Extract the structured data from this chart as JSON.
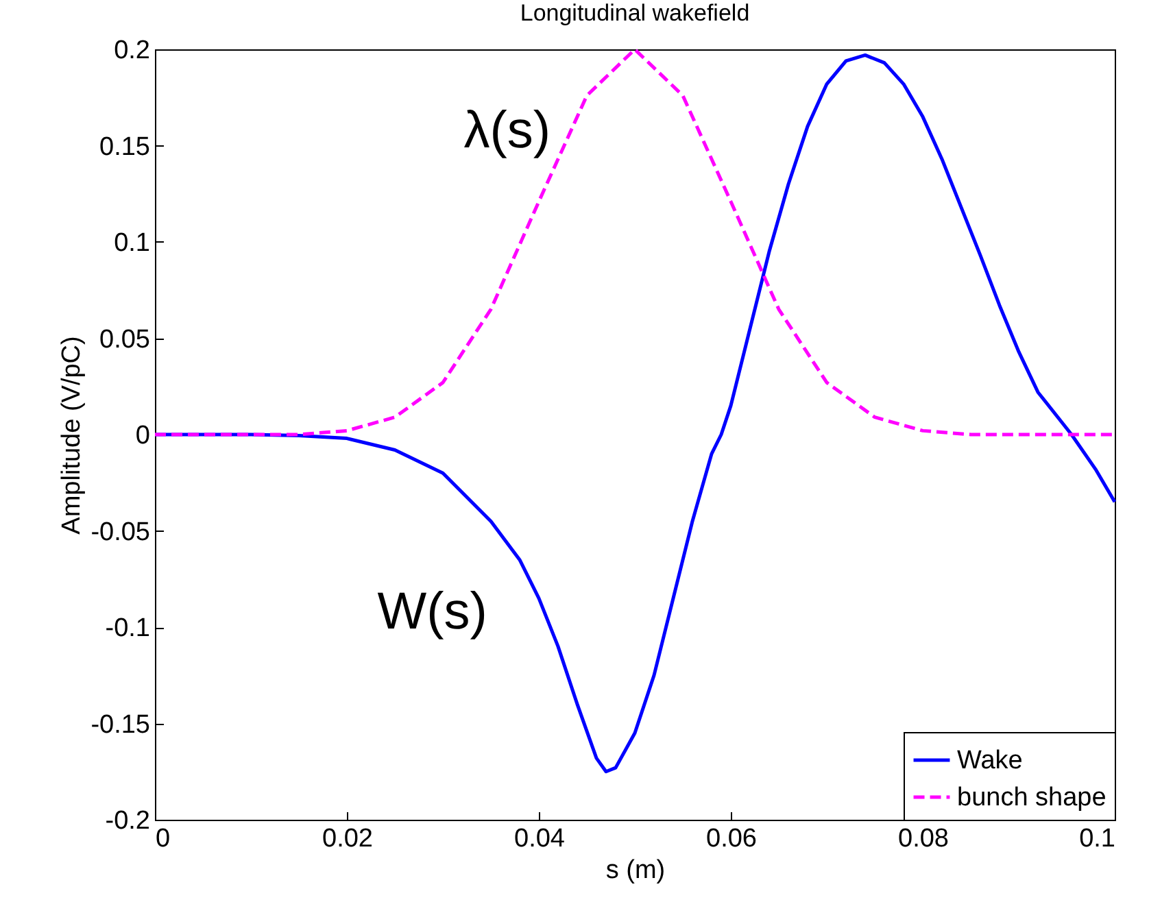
{
  "chart_data": {
    "type": "line",
    "title": "Longitudinal wakefield",
    "xlabel": "s (m)",
    "ylabel": "Amplitude (V/pC)",
    "xlim": [
      0,
      0.1
    ],
    "xticks": [
      0,
      0.02,
      0.04,
      0.06,
      0.08,
      0.1
    ],
    "ylim": [
      -0.2,
      0.2
    ],
    "yticks": [
      -0.2,
      -0.15,
      -0.1,
      -0.05,
      0,
      0.05,
      0.1,
      0.15,
      0.2
    ],
    "grid": false,
    "legend": "bottom right",
    "marker": "none",
    "series": [
      {
        "name": "Wake",
        "color": "#0000ff",
        "line_style": "solid",
        "x": [
          0,
          0.01,
          0.015,
          0.02,
          0.025,
          0.03,
          0.035,
          0.038,
          0.04,
          0.042,
          0.044,
          0.046,
          0.047,
          0.048,
          0.05,
          0.052,
          0.054,
          0.056,
          0.058,
          0.059,
          0.06,
          0.062,
          0.064,
          0.066,
          0.068,
          0.07,
          0.072,
          0.074,
          0.076,
          0.078,
          0.08,
          0.082,
          0.084,
          0.086,
          0.088,
          0.09,
          0.092,
          0.0955,
          0.098,
          0.1
        ],
        "values": [
          0,
          0,
          -0.0005,
          -0.002,
          -0.008,
          -0.02,
          -0.045,
          -0.065,
          -0.085,
          -0.11,
          -0.14,
          -0.168,
          -0.175,
          -0.173,
          -0.155,
          -0.125,
          -0.085,
          -0.045,
          -0.01,
          0,
          0.015,
          0.055,
          0.095,
          0.13,
          0.16,
          0.182,
          0.194,
          0.197,
          0.193,
          0.182,
          0.165,
          0.143,
          0.118,
          0.093,
          0.067,
          0.043,
          0.022,
          0,
          -0.018,
          -0.035
        ]
      },
      {
        "name": "bunch shape",
        "color": "#ff00ff",
        "line_style": "dashed",
        "x": [
          0,
          0.01,
          0.015,
          0.02,
          0.025,
          0.03,
          0.035,
          0.04,
          0.045,
          0.05,
          0.055,
          0.06,
          0.065,
          0.07,
          0.075,
          0.08,
          0.085,
          0.09,
          0.1
        ],
        "values": [
          0,
          0,
          0,
          0.002,
          0.009,
          0.027,
          0.065,
          0.121,
          0.176,
          0.2,
          0.176,
          0.121,
          0.065,
          0.027,
          0.009,
          0.002,
          0,
          0,
          0
        ]
      }
    ],
    "annotations": [
      "λ(s)",
      "W(s)"
    ]
  }
}
